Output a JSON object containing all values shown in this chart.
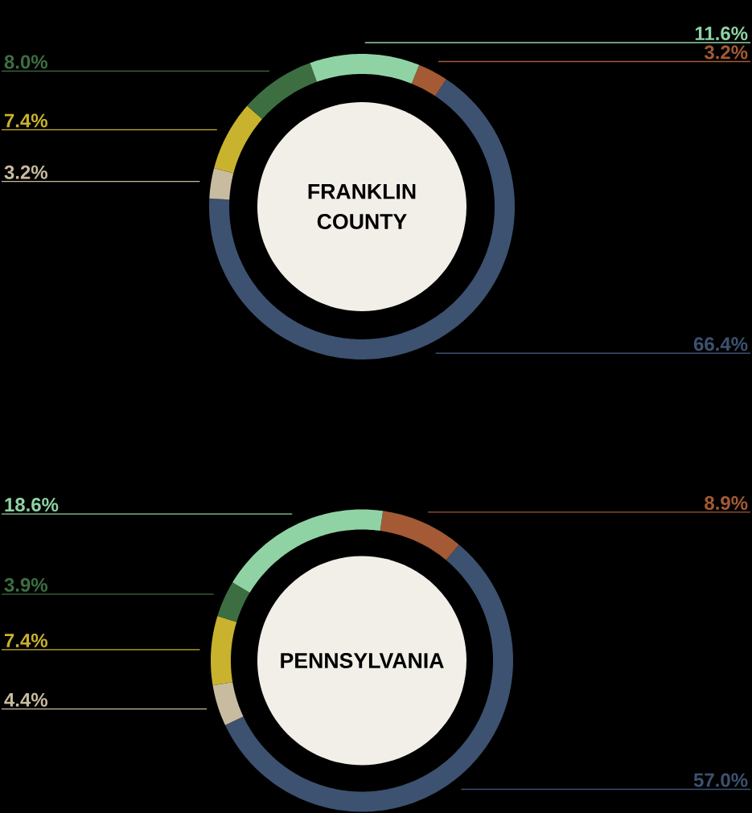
{
  "chart_data": [
    {
      "type": "donut",
      "title": "FRANKLIN COUNTY",
      "categories": [
        null,
        null,
        null,
        null,
        null,
        null
      ],
      "values": [
        3.2,
        66.4,
        3.2,
        7.4,
        8.0,
        11.6
      ],
      "colors": [
        "#a35a35",
        "#3d5170",
        "#c8bca0",
        "#c9b22e",
        "#3c6e41",
        "#8fd3a5"
      ],
      "value_labels": [
        "3.2%",
        "66.4%",
        "3.2%",
        "7.4%",
        "8.0%",
        "11.6%"
      ]
    },
    {
      "type": "donut",
      "title": "PENNSYLVANIA",
      "categories": [
        null,
        null,
        null,
        null,
        null,
        null
      ],
      "values": [
        8.9,
        57.0,
        4.4,
        7.4,
        3.9,
        18.6
      ],
      "colors": [
        "#a35a35",
        "#3d5170",
        "#c8bca0",
        "#c9b22e",
        "#3c6e41",
        "#8fd3a5"
      ],
      "value_labels": [
        "8.9%",
        "57.0%",
        "4.4%",
        "7.4%",
        "3.9%",
        "18.6%"
      ]
    }
  ]
}
